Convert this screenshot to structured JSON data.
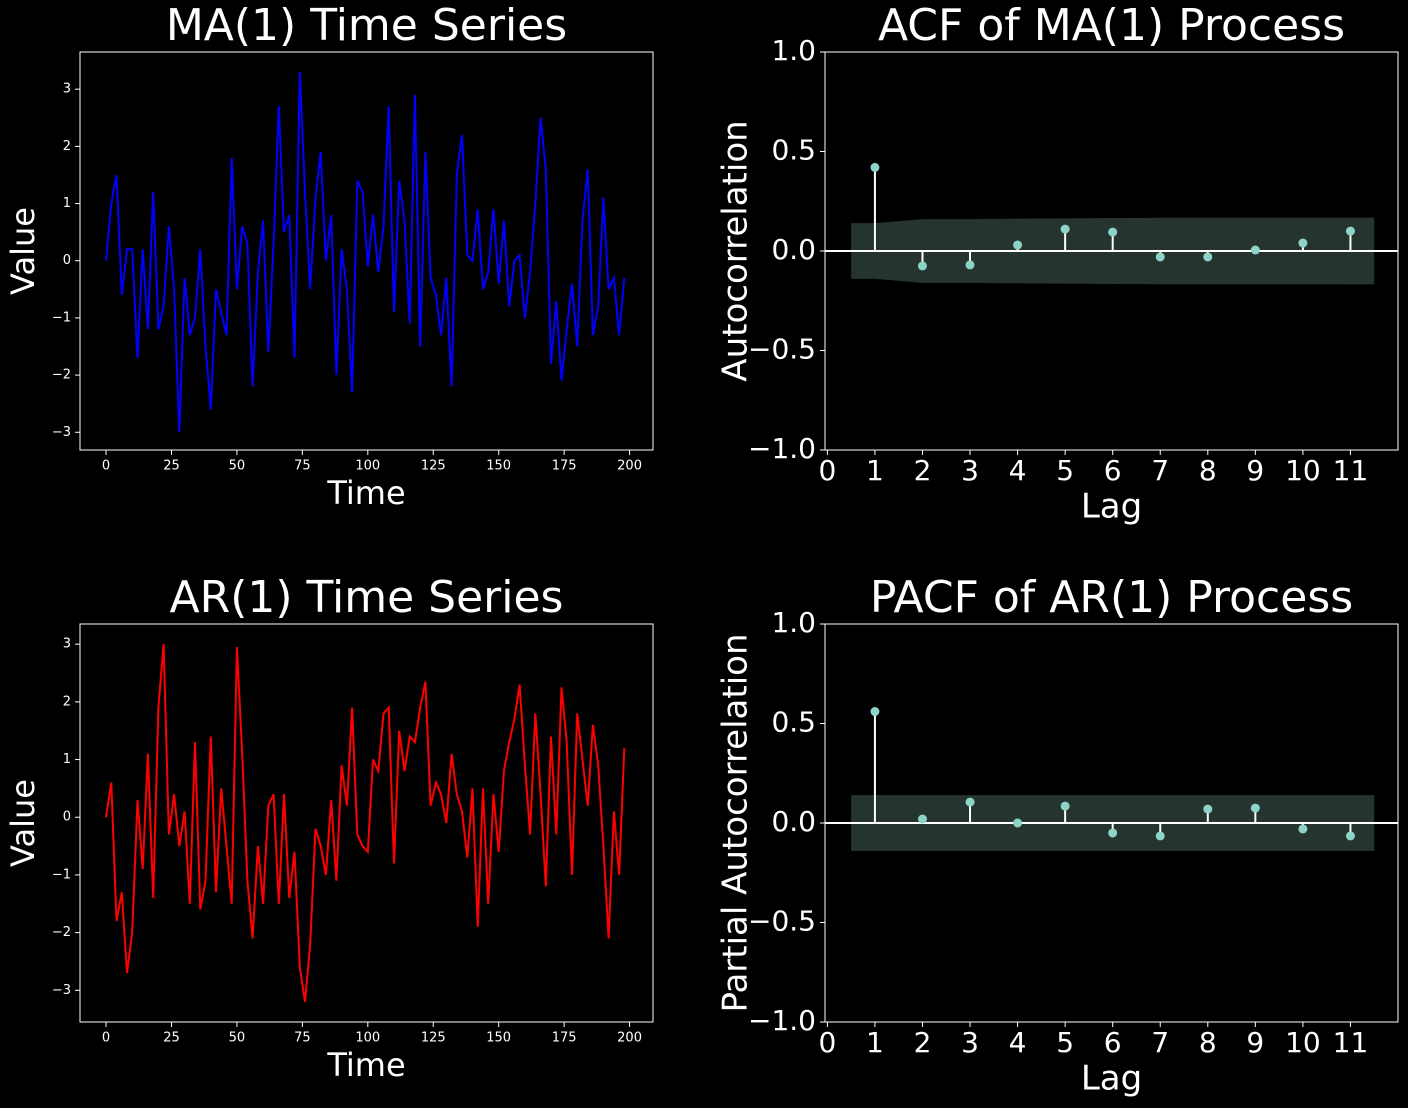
{
  "chart_data": [
    {
      "type": "line",
      "title": "MA(1) Time Series",
      "xlabel": "Time",
      "ylabel": "Value",
      "color": "#0000ff",
      "x": [
        0,
        2,
        4,
        6,
        8,
        10,
        12,
        14,
        16,
        18,
        20,
        22,
        24,
        26,
        28,
        30,
        32,
        34,
        36,
        38,
        40,
        42,
        44,
        46,
        48,
        50,
        52,
        54,
        56,
        58,
        60,
        62,
        64,
        66,
        68,
        70,
        72,
        74,
        76,
        78,
        80,
        82,
        84,
        86,
        88,
        90,
        92,
        94,
        96,
        98,
        100,
        102,
        104,
        106,
        108,
        110,
        112,
        114,
        116,
        118,
        120,
        122,
        124,
        126,
        128,
        130,
        132,
        134,
        136,
        138,
        140,
        142,
        144,
        146,
        148,
        150,
        152,
        154,
        156,
        158,
        160,
        162,
        164,
        166,
        168,
        170,
        172,
        174,
        176,
        178,
        180,
        182,
        184,
        186,
        188,
        190,
        192,
        194,
        196,
        198
      ],
      "values": [
        0,
        1.0,
        1.5,
        -0.6,
        0.2,
        0.2,
        -1.7,
        0.2,
        -1.2,
        1.2,
        -1.2,
        -0.8,
        0.6,
        -0.5,
        -3.0,
        -0.3,
        -1.3,
        -1.0,
        0.2,
        -1.5,
        -2.6,
        -0.5,
        -0.9,
        -1.3,
        1.8,
        -0.5,
        0.6,
        0.3,
        -2.2,
        -0.2,
        0.7,
        -1.6,
        0.3,
        2.7,
        0.5,
        0.8,
        -1.7,
        3.3,
        1.2,
        -0.5,
        1.1,
        1.9,
        0.0,
        0.8,
        -2.0,
        0.2,
        -0.5,
        -2.3,
        1.4,
        1.2,
        -0.1,
        0.8,
        -0.2,
        0.6,
        2.7,
        -0.9,
        1.4,
        0.7,
        -1.1,
        2.9,
        -1.5,
        1.9,
        -0.3,
        -0.6,
        -1.3,
        -0.3,
        -2.2,
        1.5,
        2.2,
        0.1,
        0.0,
        0.9,
        -0.5,
        -0.2,
        0.9,
        -0.4,
        0.7,
        -0.8,
        0.0,
        0.1,
        -1.0,
        -0.2,
        1.0,
        2.5,
        1.6,
        -1.8,
        -0.7,
        -2.1,
        -1.2,
        -0.4,
        -1.5,
        0.7,
        1.6,
        -1.3,
        -0.8,
        1.1,
        -0.5,
        -0.3,
        -1.3,
        -0.3
      ],
      "xlim": [
        -9.95,
        208.95
      ],
      "ylim": [
        -3.31,
        3.65
      ],
      "xticks": [
        0,
        25,
        50,
        75,
        100,
        125,
        150,
        175,
        200
      ],
      "yticks": [
        {
          "value": -3,
          "label": "−3"
        },
        {
          "value": -2,
          "label": "−2"
        },
        {
          "value": -1,
          "label": "−1"
        },
        0,
        1,
        2,
        3
      ]
    },
    {
      "type": "stem",
      "title": "ACF of MA(1) Process",
      "xlabel": "Lag",
      "ylabel": "Autocorrelation",
      "color": "#8dd3c7",
      "x": [
        1,
        2,
        3,
        4,
        5,
        6,
        7,
        8,
        9,
        10,
        11
      ],
      "values": [
        0.42,
        -0.075,
        -0.07,
        0.03,
        0.11,
        0.095,
        -0.03,
        -0.03,
        0.005,
        0.04,
        0.1
      ],
      "confidence_band": {
        "color": "#25342f",
        "x": [
          0.5,
          1,
          2,
          3,
          4,
          5,
          6,
          7,
          8,
          9,
          10,
          11,
          11.5
        ],
        "upper": [
          0.14,
          0.14,
          0.16,
          0.16,
          0.163,
          0.164,
          0.166,
          0.167,
          0.167,
          0.167,
          0.167,
          0.168,
          0.168
        ],
        "lower": [
          -0.14,
          -0.14,
          -0.16,
          -0.16,
          -0.163,
          -0.164,
          -0.166,
          -0.167,
          -0.167,
          -0.167,
          -0.167,
          -0.168,
          -0.168
        ]
      },
      "xlim": [
        -0.05,
        12
      ],
      "ylim": [
        -1,
        1
      ],
      "xticks": [
        0,
        1,
        2,
        3,
        4,
        5,
        6,
        7,
        8,
        9,
        10,
        11
      ],
      "yticks": [
        {
          "value": -1,
          "label": "−1.0"
        },
        {
          "value": -0.5,
          "label": "−0.5"
        },
        {
          "value": 0,
          "label": "0.0"
        },
        0.5,
        {
          "value": 1,
          "label": "1.0"
        }
      ]
    },
    {
      "type": "line",
      "title": "AR(1) Time Series",
      "xlabel": "Time",
      "ylabel": "Value",
      "color": "#ff0000",
      "x": [
        0,
        2,
        4,
        6,
        8,
        10,
        12,
        14,
        16,
        18,
        20,
        22,
        24,
        26,
        28,
        30,
        32,
        34,
        36,
        38,
        40,
        42,
        44,
        46,
        48,
        50,
        52,
        54,
        56,
        58,
        60,
        62,
        64,
        66,
        68,
        70,
        72,
        74,
        76,
        78,
        80,
        82,
        84,
        86,
        88,
        90,
        92,
        94,
        96,
        98,
        100,
        102,
        104,
        106,
        108,
        110,
        112,
        114,
        116,
        118,
        120,
        122,
        124,
        126,
        128,
        130,
        132,
        134,
        136,
        138,
        140,
        142,
        144,
        146,
        148,
        150,
        152,
        154,
        156,
        158,
        160,
        162,
        164,
        166,
        168,
        170,
        172,
        174,
        176,
        178,
        180,
        182,
        184,
        186,
        188,
        190,
        192,
        194,
        196,
        198
      ],
      "values": [
        0,
        0.6,
        -1.8,
        -1.3,
        -2.7,
        -2.0,
        0.3,
        -0.9,
        1.1,
        -1.4,
        1.9,
        3.0,
        -0.3,
        0.4,
        -0.5,
        0.1,
        -1.5,
        1.3,
        -1.6,
        -1.1,
        1.4,
        -1.3,
        0.5,
        -0.5,
        -1.5,
        2.95,
        1.1,
        -1.1,
        -2.1,
        -0.5,
        -1.5,
        0.2,
        0.4,
        -1.5,
        0.4,
        -1.4,
        -0.6,
        -2.6,
        -3.2,
        -2.2,
        -0.2,
        -0.5,
        -1.0,
        0.3,
        -1.1,
        0.9,
        0.2,
        1.9,
        -0.3,
        -0.5,
        -0.6,
        1.0,
        0.8,
        1.8,
        1.9,
        -0.8,
        1.5,
        0.8,
        1.4,
        1.3,
        1.9,
        2.35,
        0.2,
        0.6,
        0.4,
        -0.1,
        1.1,
        0.4,
        0.1,
        -0.7,
        0.5,
        -1.9,
        0.5,
        -1.5,
        0.4,
        -0.6,
        0.8,
        1.3,
        1.7,
        2.3,
        0.9,
        -0.3,
        1.8,
        0.4,
        -1.2,
        1.4,
        -0.3,
        2.25,
        1.3,
        -1.0,
        1.8,
        1.0,
        0.2,
        1.6,
        0.9,
        -0.5,
        -2.1,
        0.1,
        -1.0,
        1.2
      ],
      "xlim": [
        -9.95,
        208.95
      ],
      "ylim": [
        -3.55,
        3.35
      ],
      "xticks": [
        0,
        25,
        50,
        75,
        100,
        125,
        150,
        175,
        200
      ],
      "yticks": [
        {
          "value": -3,
          "label": "−3"
        },
        {
          "value": -2,
          "label": "−2"
        },
        {
          "value": -1,
          "label": "−1"
        },
        0,
        1,
        2,
        3
      ]
    },
    {
      "type": "stem",
      "title": "PACF of AR(1) Process",
      "xlabel": "Lag",
      "ylabel": "Partial Autocorrelation",
      "color": "#8dd3c7",
      "x": [
        1,
        2,
        3,
        4,
        5,
        6,
        7,
        8,
        9,
        10,
        11
      ],
      "values": [
        0.56,
        0.02,
        0.105,
        0.0,
        0.085,
        -0.05,
        -0.065,
        0.07,
        0.075,
        -0.03,
        -0.065
      ],
      "confidence_band": {
        "color": "#25342f",
        "x": [
          0.5,
          11.5
        ],
        "upper": [
          0.14,
          0.14
        ],
        "lower": [
          -0.14,
          -0.14
        ]
      },
      "xlim": [
        -0.05,
        12
      ],
      "ylim": [
        -1,
        1
      ],
      "xticks": [
        0,
        1,
        2,
        3,
        4,
        5,
        6,
        7,
        8,
        9,
        10,
        11
      ],
      "yticks": [
        {
          "value": -1,
          "label": "−1.0"
        },
        {
          "value": -0.5,
          "label": "−0.5"
        },
        {
          "value": 0,
          "label": "0.0"
        },
        0.5,
        {
          "value": 1,
          "label": "1.0"
        }
      ]
    }
  ]
}
